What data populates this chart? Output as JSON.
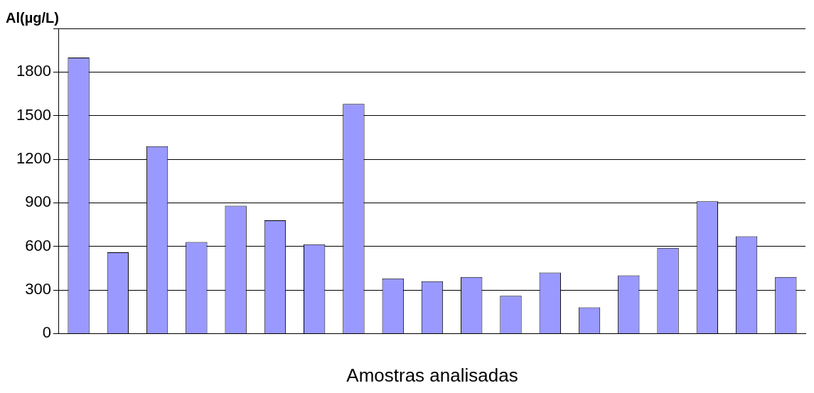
{
  "chart_data": {
    "type": "bar",
    "ylabel": "Al(µg/L)",
    "xlabel": "Amostras analisadas",
    "categories": [
      null,
      null,
      null,
      null,
      null,
      null,
      null,
      null,
      null,
      null,
      null,
      null,
      null,
      null,
      null,
      null,
      null,
      null,
      null
    ],
    "values": [
      1900,
      560,
      1290,
      630,
      880,
      780,
      615,
      1580,
      380,
      360,
      390,
      260,
      420,
      180,
      400,
      590,
      910,
      670,
      390
    ],
    "color": "#9999ff",
    "ylim": [
      0,
      2100
    ],
    "yticks": [
      0,
      300,
      600,
      900,
      1200,
      1500,
      1800,
      {
        "value": 2100,
        "label": null
      }
    ],
    "grid": "y",
    "legend": false
  }
}
